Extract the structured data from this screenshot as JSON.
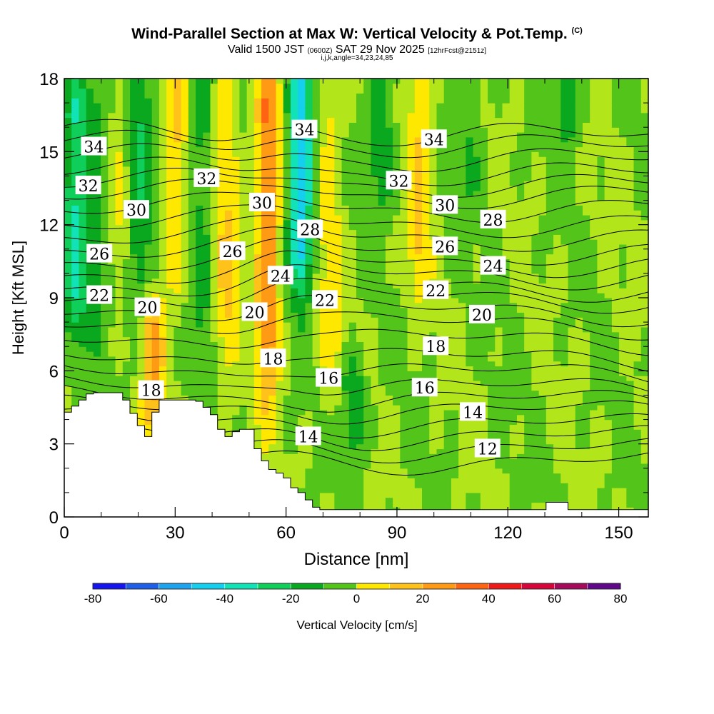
{
  "chart_data": {
    "type": "heatmap",
    "title": "Wind-Parallel Section at Max W: Vertical Velocity & Pot.Temp.",
    "copyright": "(C)",
    "valid_prefix": "Valid 1500 JST",
    "valid_utc": "(0600Z)",
    "valid_date": "SAT 29 Nov 2025",
    "forecast_tag": "[12hrFcst@2151z]",
    "ijk_label": "i,j,k,angle=34,23,24,85",
    "xlabel": "Distance [nm]",
    "ylabel": "Height [Kft MSL]",
    "xlim": [
      0,
      158
    ],
    "ylim": [
      0,
      18
    ],
    "x_ticks": [
      0,
      30,
      60,
      90,
      120,
      150
    ],
    "y_ticks": [
      0,
      3,
      6,
      9,
      12,
      15,
      18
    ],
    "colorbar": {
      "label": "Vertical Velocity [cm/s]",
      "ticks": [
        -80,
        -60,
        -40,
        -20,
        0,
        20,
        40,
        60,
        80
      ],
      "levels": [
        -80,
        -70,
        -60,
        -50,
        -40,
        -30,
        -20,
        -10,
        0,
        10,
        20,
        30,
        40,
        50,
        60,
        70,
        80
      ],
      "colors": [
        "#1515ee",
        "#1f5fe8",
        "#1ea3ee",
        "#15cfef",
        "#11e3b6",
        "#0fcf5a",
        "#0aa81e",
        "#52c41a",
        "#b3e61a",
        "#ffe800",
        "#ffc21a",
        "#ff9a14",
        "#ff6412",
        "#ee1a1a",
        "#d4063a",
        "#a40b5a",
        "#60088a"
      ]
    },
    "theta_contours": {
      "units": "deg C",
      "levels": [
        10,
        11,
        12,
        13,
        14,
        15,
        16,
        17,
        18,
        19,
        20,
        21,
        22,
        23,
        24,
        25,
        26,
        27,
        28,
        29,
        30,
        31,
        32,
        33,
        34,
        35
      ],
      "base_height_kft": [
        2.4,
        2.9,
        3.4,
        3.9,
        4.45,
        4.9,
        5.4,
        6.0,
        6.6,
        7.35,
        8.0,
        8.55,
        9.1,
        9.55,
        10.05,
        10.55,
        11.05,
        11.6,
        12.15,
        12.75,
        13.3,
        13.75,
        14.2,
        14.75,
        15.3,
        15.75
      ]
    },
    "contour_labels": [
      {
        "text": "34",
        "x": 8,
        "y": 15.2
      },
      {
        "text": "32",
        "x": 6.5,
        "y": 13.6
      },
      {
        "text": "30",
        "x": 19.5,
        "y": 12.6
      },
      {
        "text": "26",
        "x": 9.5,
        "y": 10.8
      },
      {
        "text": "22",
        "x": 9.5,
        "y": 9.1
      },
      {
        "text": "20",
        "x": 22.5,
        "y": 8.6
      },
      {
        "text": "18",
        "x": 23.5,
        "y": 5.2
      },
      {
        "text": "32",
        "x": 38.5,
        "y": 13.9
      },
      {
        "text": "30",
        "x": 53.5,
        "y": 12.9
      },
      {
        "text": "26",
        "x": 45.5,
        "y": 10.9
      },
      {
        "text": "24",
        "x": 58.5,
        "y": 9.9
      },
      {
        "text": "20",
        "x": 51.5,
        "y": 8.4
      },
      {
        "text": "18",
        "x": 56.5,
        "y": 6.5
      },
      {
        "text": "34",
        "x": 65,
        "y": 15.9
      },
      {
        "text": "28",
        "x": 66.5,
        "y": 11.8
      },
      {
        "text": "22",
        "x": 70.5,
        "y": 8.9
      },
      {
        "text": "16",
        "x": 71.5,
        "y": 5.7
      },
      {
        "text": "14",
        "x": 66,
        "y": 3.3
      },
      {
        "text": "34",
        "x": 100,
        "y": 15.5
      },
      {
        "text": "32",
        "x": 90.5,
        "y": 13.8
      },
      {
        "text": "30",
        "x": 103,
        "y": 12.8
      },
      {
        "text": "26",
        "x": 103,
        "y": 11.1
      },
      {
        "text": "22",
        "x": 100.5,
        "y": 9.3
      },
      {
        "text": "18",
        "x": 100.5,
        "y": 7.0
      },
      {
        "text": "16",
        "x": 97.5,
        "y": 5.3
      },
      {
        "text": "28",
        "x": 116,
        "y": 12.2
      },
      {
        "text": "24",
        "x": 116,
        "y": 10.3
      },
      {
        "text": "20",
        "x": 113,
        "y": 8.3
      },
      {
        "text": "14",
        "x": 110.5,
        "y": 4.3
      },
      {
        "text": "12",
        "x": 114.5,
        "y": 2.8
      }
    ],
    "terrain_height_kft": [
      4.3,
      4.55,
      4.8,
      5.05,
      5.1,
      5.1,
      5.1,
      5.1,
      4.8,
      4.25,
      3.75,
      3.3,
      4.3,
      4.8,
      4.8,
      4.8,
      4.8,
      4.8,
      4.75,
      4.5,
      4.2,
      3.6,
      3.3,
      3.5,
      3.6,
      3.6,
      2.8,
      2.3,
      1.95,
      1.8,
      1.6,
      1.2,
      1.0,
      0.7,
      0.4,
      0.3,
      0.3,
      0.3,
      0.3,
      0.3,
      0.3,
      0.3,
      0.3,
      0.3,
      0.3,
      0.3,
      0.3,
      0.3,
      0.3,
      0.3,
      0.3,
      0.3,
      0.3,
      0.3,
      0.3,
      0.3,
      0.3,
      0.3,
      0.3,
      0.3,
      0.3,
      0.3,
      0.3,
      0.3,
      0.3,
      0.3,
      0.6,
      0.6,
      0.6,
      0.3,
      0.3,
      0.3,
      0.3,
      0.3,
      0.3,
      0.3,
      0.3,
      0.3,
      0.3,
      0.3
    ],
    "updraft_cores": [
      {
        "x": 3,
        "y_min": 8.5,
        "y_max": 18,
        "w": -30
      },
      {
        "x": 9,
        "y_min": 9,
        "y_max": 18,
        "w": -15
      },
      {
        "x": 15,
        "y_min": 11,
        "y_max": 18,
        "w": 10
      },
      {
        "x": 20,
        "y_min": 9,
        "y_max": 18,
        "w": -20
      },
      {
        "x": 24,
        "y_min": 4.5,
        "y_max": 8,
        "w": 30
      },
      {
        "x": 30,
        "y_min": 10,
        "y_max": 18,
        "w": 20
      },
      {
        "x": 37,
        "y_min": 8,
        "y_max": 18,
        "w": -15
      },
      {
        "x": 44,
        "y_min": 7,
        "y_max": 18,
        "w": 20
      },
      {
        "x": 55,
        "y_min": 6,
        "y_max": 18,
        "w": 40
      },
      {
        "x": 64,
        "y_min": 10.5,
        "y_max": 18,
        "w": -50
      },
      {
        "x": 72,
        "y_min": 6,
        "y_max": 18,
        "w": 15
      },
      {
        "x": 78,
        "y_min": 3.5,
        "y_max": 5.5,
        "w": -20
      },
      {
        "x": 86,
        "y_min": 14,
        "y_max": 18,
        "w": -20
      },
      {
        "x": 96,
        "y_min": 10,
        "y_max": 18,
        "w": 20
      },
      {
        "x": 110,
        "y_min": 14,
        "y_max": 18,
        "w": -10
      },
      {
        "x": 136,
        "y_min": 16.5,
        "y_max": 18,
        "w": -20
      }
    ]
  }
}
